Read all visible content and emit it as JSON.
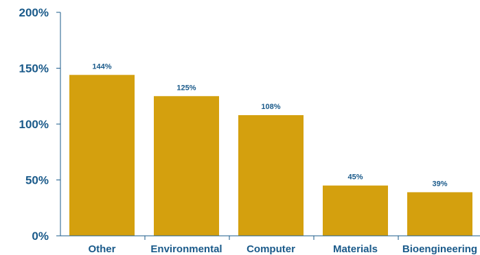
{
  "chart_data": {
    "type": "bar",
    "categories": [
      "Other",
      "Environmental",
      "Computer",
      "Materials",
      "Bioengineering"
    ],
    "values": [
      144,
      125,
      108,
      45,
      39
    ],
    "data_labels": [
      "144%",
      "125%",
      "108%",
      "45%",
      "39%"
    ],
    "title": "",
    "xlabel": "",
    "ylabel": "",
    "ylim": [
      0,
      200
    ],
    "yticks": [
      0,
      50,
      100,
      150,
      200
    ],
    "ytick_labels": [
      "0%",
      "50%",
      "100%",
      "150%",
      "200%"
    ],
    "grid": false,
    "legend": "none"
  },
  "colors": {
    "bar": "#D4A00E",
    "text": "#1a5a8a",
    "axis": "#1a5a8a"
  }
}
